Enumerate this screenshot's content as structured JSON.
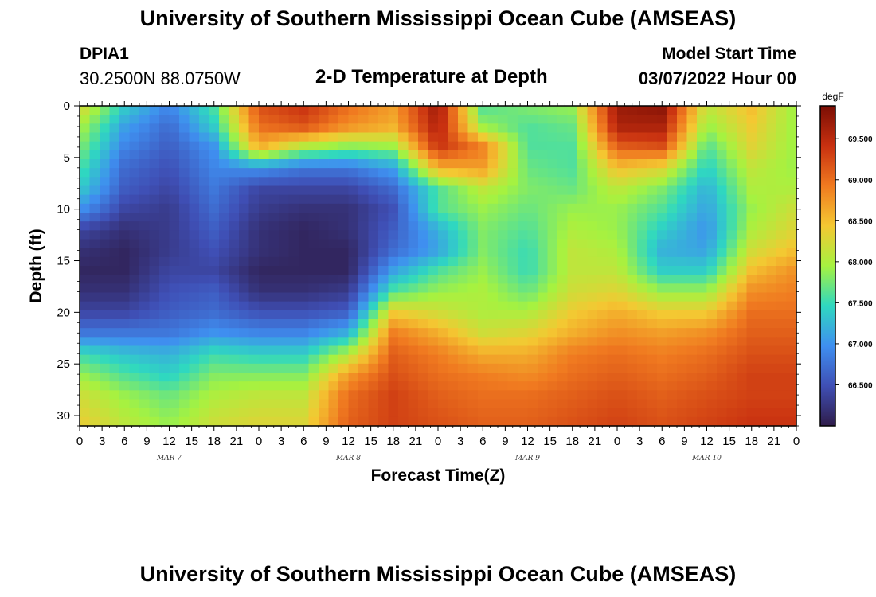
{
  "page": {
    "title_top": "University of Southern Mississippi Ocean Cube (AMSEAS)",
    "title_bottom": "University of Southern Mississippi Ocean Cube (AMSEAS)",
    "station_name": "DPIA1",
    "station_coords": "30.2500N  88.0750W",
    "subtitle": "2-D Temperature at Depth",
    "model_label": "Model Start Time",
    "model_date": "03/07/2022 Hour 00"
  },
  "chart_data": {
    "type": "heatmap",
    "title": "2-D Temperature at Depth",
    "xlabel": "Forecast Time(Z)",
    "ylabel": "Depth (ft)",
    "xlim_hours": [
      0,
      96
    ],
    "ylim": [
      0,
      31
    ],
    "x_tick_step_hours": 3,
    "x_tick_labels": [
      "0",
      "3",
      "6",
      "9",
      "12",
      "15",
      "18",
      "21",
      "0",
      "3",
      "6",
      "9",
      "12",
      "15",
      "18",
      "21",
      "0",
      "3",
      "6",
      "9",
      "12",
      "15",
      "18",
      "21",
      "0",
      "3",
      "6",
      "9",
      "12",
      "15",
      "18",
      "21",
      "0"
    ],
    "y_ticks": [
      0,
      5,
      10,
      15,
      20,
      25,
      30
    ],
    "y_tick_labels": [
      "0",
      "5",
      "10",
      "15",
      "20",
      "25",
      "30"
    ],
    "date_labels": [
      {
        "text": "MAR 7",
        "hour": 12
      },
      {
        "text": "MAR 8",
        "hour": 36
      },
      {
        "text": "MAR 9",
        "hour": 60
      },
      {
        "text": "MAR 10",
        "hour": 84
      }
    ],
    "colorbar": {
      "unit": "degF",
      "min": 66.0,
      "max": 69.9,
      "ticks": [
        66.5,
        67.0,
        67.5,
        68.0,
        68.5,
        69.0,
        69.5
      ],
      "tick_labels": [
        "66.500",
        "67.000",
        "67.500",
        "68.000",
        "68.500",
        "69.000",
        "69.500"
      ],
      "colors": [
        "#2f1c4a",
        "#3f4fb5",
        "#3f8ff0",
        "#2fd8c0",
        "#a6f240",
        "#f4c832",
        "#f07a20",
        "#c83010",
        "#7a0e04"
      ]
    },
    "depths_ft": [
      0,
      2,
      4,
      6,
      8,
      10,
      12,
      14,
      16,
      18,
      20,
      22,
      24,
      26,
      28,
      31
    ],
    "times_hours": [
      0,
      6,
      12,
      18,
      24,
      30,
      36,
      42,
      48,
      54,
      60,
      66,
      72,
      78,
      84,
      90,
      96
    ],
    "values_degF": [
      [
        68.3,
        67.4,
        66.9,
        67.6,
        69.2,
        69.4,
        69.0,
        68.7,
        69.7,
        67.6,
        67.8,
        67.9,
        69.7,
        69.8,
        68.1,
        68.5,
        67.9
      ],
      [
        68.0,
        67.1,
        66.7,
        67.4,
        69.0,
        69.2,
        68.8,
        68.6,
        69.6,
        67.9,
        67.6,
        67.7,
        69.6,
        69.6,
        67.9,
        68.4,
        67.9
      ],
      [
        67.8,
        66.9,
        66.6,
        67.0,
        68.6,
        68.0,
        67.8,
        67.9,
        69.4,
        68.9,
        67.6,
        67.6,
        69.1,
        69.2,
        67.6,
        68.3,
        67.9
      ],
      [
        67.6,
        66.7,
        66.5,
        66.9,
        67.0,
        66.8,
        66.8,
        67.1,
        68.6,
        68.7,
        67.7,
        67.6,
        68.5,
        68.3,
        67.4,
        68.1,
        67.9
      ],
      [
        67.4,
        66.6,
        66.4,
        66.8,
        66.4,
        66.4,
        66.4,
        66.7,
        67.6,
        68.1,
        67.8,
        67.7,
        68.1,
        67.8,
        67.2,
        68.0,
        68.0
      ],
      [
        67.0,
        66.4,
        66.3,
        66.7,
        66.3,
        66.2,
        66.2,
        66.5,
        67.6,
        67.9,
        67.7,
        67.9,
        67.9,
        67.6,
        67.1,
        67.9,
        68.2
      ],
      [
        66.4,
        66.2,
        66.3,
        66.6,
        66.2,
        66.1,
        66.2,
        66.6,
        67.2,
        67.8,
        67.6,
        68.0,
        67.9,
        67.4,
        67.0,
        68.0,
        68.3
      ],
      [
        66.2,
        66.1,
        66.3,
        66.5,
        66.2,
        66.1,
        66.1,
        66.7,
        67.1,
        67.8,
        67.5,
        68.1,
        68.0,
        67.2,
        67.1,
        68.2,
        68.5
      ],
      [
        66.1,
        66.1,
        66.4,
        66.4,
        66.1,
        66.1,
        66.1,
        67.1,
        67.6,
        67.9,
        67.5,
        68.1,
        68.1,
        67.4,
        67.4,
        68.5,
        68.8
      ],
      [
        66.2,
        66.2,
        66.5,
        66.6,
        66.2,
        66.2,
        66.3,
        67.6,
        67.9,
        68.0,
        67.7,
        68.2,
        68.3,
        67.9,
        67.9,
        68.8,
        68.9
      ],
      [
        66.4,
        66.4,
        66.6,
        66.7,
        66.5,
        66.5,
        66.6,
        68.4,
        68.2,
        68.0,
        68.0,
        68.4,
        68.6,
        68.4,
        68.4,
        69.0,
        69.0
      ],
      [
        66.8,
        66.8,
        66.8,
        67.0,
        66.9,
        66.9,
        67.2,
        68.9,
        68.6,
        68.2,
        68.3,
        68.6,
        68.8,
        68.7,
        68.8,
        69.1,
        69.1
      ],
      [
        67.5,
        67.3,
        67.2,
        67.5,
        67.4,
        67.4,
        68.0,
        69.1,
        68.9,
        68.6,
        68.6,
        68.9,
        69.0,
        68.9,
        69.0,
        69.2,
        69.2
      ],
      [
        67.9,
        67.6,
        67.4,
        67.8,
        67.8,
        67.8,
        68.7,
        69.2,
        69.0,
        68.9,
        68.8,
        69.0,
        69.1,
        69.0,
        69.1,
        69.3,
        69.3
      ],
      [
        68.2,
        67.9,
        67.7,
        68.0,
        68.1,
        68.1,
        69.0,
        69.3,
        69.1,
        69.0,
        69.0,
        69.1,
        69.2,
        69.1,
        69.2,
        69.3,
        69.3
      ],
      [
        68.4,
        68.1,
        67.9,
        68.2,
        68.3,
        68.3,
        69.1,
        69.3,
        69.2,
        69.1,
        69.1,
        69.2,
        69.3,
        69.2,
        69.3,
        69.4,
        69.4
      ]
    ]
  }
}
